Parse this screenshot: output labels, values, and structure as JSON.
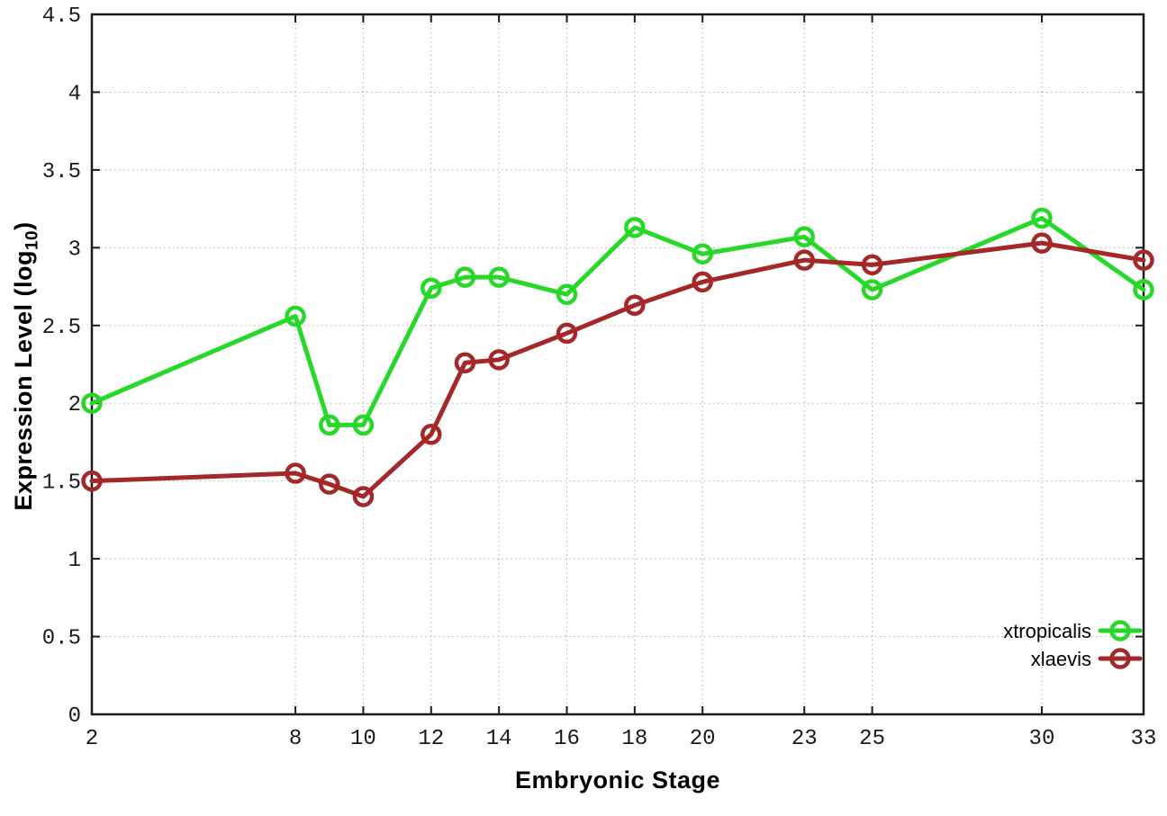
{
  "chart_data": {
    "type": "line",
    "title": "",
    "xlabel": "Embryonic Stage",
    "ylabel": "Expression Level (log10)",
    "ylabel_prefix": "Expression Level (log",
    "ylabel_sub": "10",
    "ylabel_suffix": ")",
    "x": [
      2,
      8,
      9,
      10,
      12,
      13,
      14,
      16,
      18,
      20,
      23,
      25,
      30,
      33
    ],
    "series": [
      {
        "name": "xtropicalis",
        "color": "#28d828",
        "values": [
          2.0,
          2.56,
          1.86,
          1.86,
          2.74,
          2.81,
          2.81,
          2.7,
          3.13,
          2.96,
          3.07,
          2.73,
          3.19,
          2.73
        ]
      },
      {
        "name": "xlaevis",
        "color": "#a52828",
        "values": [
          1.5,
          1.55,
          1.48,
          1.4,
          1.8,
          2.26,
          2.28,
          2.45,
          2.63,
          2.78,
          2.92,
          2.89,
          3.03,
          2.92
        ]
      }
    ],
    "x_ticks": [
      2,
      8,
      10,
      12,
      14,
      16,
      18,
      20,
      23,
      25,
      30,
      33
    ],
    "y_ticks": [
      0,
      0.5,
      1,
      1.5,
      2,
      2.5,
      3,
      3.5,
      4,
      4.5
    ],
    "xlim": [
      2,
      33
    ],
    "ylim": [
      0,
      4.5
    ],
    "grid": true,
    "legend_position": "bottom-right",
    "marker": "open-circle",
    "colors": {
      "border": "#1a1a1a",
      "grid": "#b0b0b0",
      "tick_label": "#1a1a1a",
      "legend_text": "#000000",
      "background": "#ffffff"
    }
  }
}
